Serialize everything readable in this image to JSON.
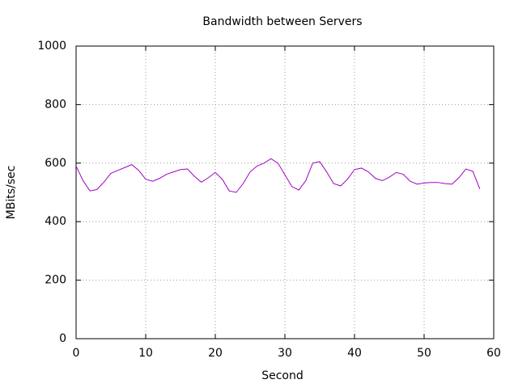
{
  "chart_data": {
    "type": "line",
    "title": "Bandwidth between Servers",
    "x_label": "Second",
    "y_label": "MBits/sec",
    "x": [
      0,
      1,
      2,
      3,
      4,
      5,
      6,
      7,
      8,
      9,
      10,
      11,
      12,
      13,
      14,
      15,
      16,
      17,
      18,
      19,
      20,
      21,
      22,
      23,
      24,
      25,
      26,
      27,
      28,
      29,
      30,
      31,
      32,
      33,
      34,
      35,
      36,
      37,
      38,
      39,
      40,
      41,
      42,
      43,
      44,
      45,
      46,
      47,
      48,
      49,
      50,
      51,
      52,
      53,
      54,
      55,
      56,
      57,
      58
    ],
    "series": [
      {
        "color": "#a000c0",
        "values": [
          590,
          540,
          505,
          510,
          535,
          565,
          575,
          585,
          595,
          575,
          545,
          538,
          548,
          562,
          570,
          578,
          580,
          555,
          535,
          550,
          568,
          545,
          505,
          500,
          530,
          570,
          590,
          600,
          615,
          600,
          560,
          520,
          508,
          540,
          600,
          605,
          570,
          530,
          522,
          545,
          578,
          583,
          570,
          548,
          540,
          552,
          568,
          562,
          538,
          528,
          532,
          534,
          534,
          530,
          528,
          550,
          580,
          572,
          512
        ]
      }
    ],
    "xlim": [
      0,
      60
    ],
    "xticks": [
      0,
      10,
      20,
      30,
      40,
      50,
      60
    ],
    "ylim": [
      0,
      1000
    ],
    "yticks": [
      0,
      200,
      400,
      600,
      800,
      1000
    ],
    "grid": true
  }
}
